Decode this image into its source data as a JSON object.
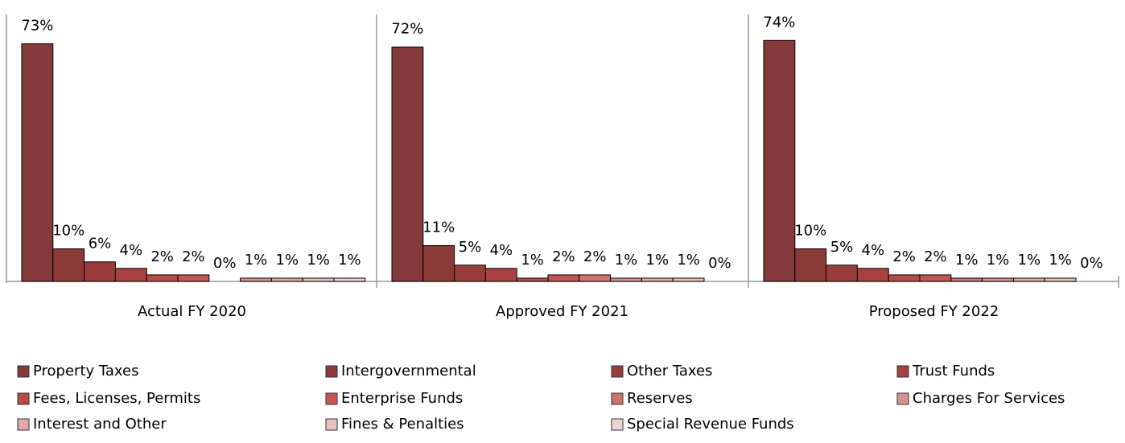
{
  "chart_data": {
    "type": "bar",
    "categories": [
      "Actual FY 2020",
      "Approved FY 2021",
      "Proposed FY 2022"
    ],
    "series": [
      {
        "name": "Property Taxes",
        "color": "#843a3a",
        "values": [
          73,
          72,
          74
        ],
        "value_labels": [
          "73%",
          "72%",
          "74%"
        ]
      },
      {
        "name": "Intergovernmental",
        "color": "#8c3a38",
        "values": [
          10,
          11,
          10
        ],
        "value_labels": [
          "10%",
          "11%",
          "10%"
        ]
      },
      {
        "name": "Other Taxes",
        "color": "#983d3b",
        "values": [
          6,
          5,
          5
        ],
        "value_labels": [
          "6%",
          "5%",
          "5%"
        ]
      },
      {
        "name": "Trust Funds",
        "color": "#a8413f",
        "values": [
          4,
          4,
          4
        ],
        "value_labels": [
          "4%",
          "4%",
          "4%"
        ]
      },
      {
        "name": "Fees, Licenses, Permits",
        "color": "#b84b48",
        "values": [
          2,
          1,
          2
        ],
        "value_labels": [
          "2%",
          "1%",
          "2%"
        ]
      },
      {
        "name": "Enterprise Funds",
        "color": "#c45552",
        "values": [
          2,
          2,
          2
        ],
        "value_labels": [
          "2%",
          "2%",
          "2%"
        ]
      },
      {
        "name": "Reserves",
        "color": "#cc7472",
        "values": [
          0,
          2,
          1
        ],
        "value_labels": [
          "0%",
          "2%",
          "1%"
        ]
      },
      {
        "name": "Charges For Services",
        "color": "#d69290",
        "values": [
          1,
          1,
          1
        ],
        "value_labels": [
          "1%",
          "1%",
          "1%"
        ]
      },
      {
        "name": "Interest and Other",
        "color": "#dfaaa8",
        "values": [
          1,
          1,
          1
        ],
        "value_labels": [
          "1%",
          "1%",
          "1%"
        ]
      },
      {
        "name": "Fines & Penalties",
        "color": "#e7c0bf",
        "values": [
          1,
          1,
          1
        ],
        "value_labels": [
          "1%",
          "1%",
          "1%"
        ]
      },
      {
        "name": "Special Revenue Funds",
        "color": "#eed3d2",
        "values": [
          1,
          0,
          0
        ],
        "value_labels": [
          "1%",
          "0%",
          "0%"
        ]
      }
    ]
  }
}
